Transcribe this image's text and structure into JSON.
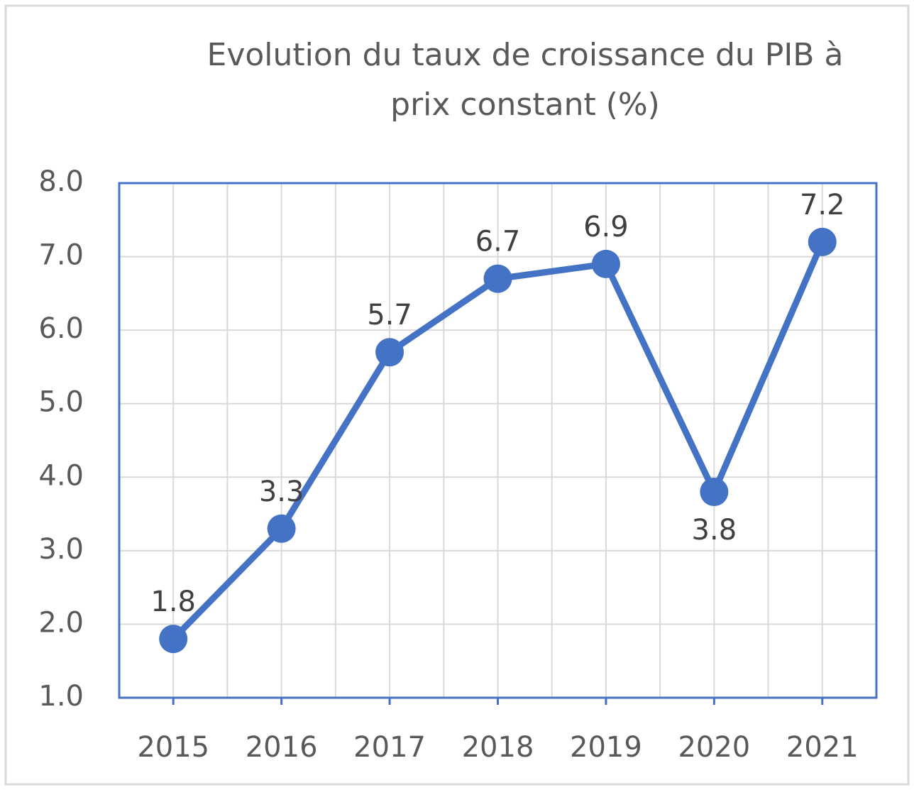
{
  "chart_data": {
    "type": "line",
    "title": [
      "Evolution du taux de croissance du PIB  à",
      "prix constant (%)"
    ],
    "categories": [
      "2015",
      "2016",
      "2017",
      "2018",
      "2019",
      "2020",
      "2021"
    ],
    "series": [
      {
        "color": "#4472c4",
        "values": [
          1.8,
          3.3,
          5.7,
          6.7,
          6.9,
          3.8,
          7.2
        ]
      }
    ],
    "value_label_position": [
      "above",
      "above",
      "above",
      "above",
      "above",
      "below",
      "above"
    ],
    "ylim": [
      1,
      8
    ],
    "yticks": [
      {
        "value": 1,
        "label": "1.0"
      },
      {
        "value": 2,
        "label": "2.0"
      },
      {
        "value": 3,
        "label": "3.0"
      },
      {
        "value": 4,
        "label": "4.0"
      },
      {
        "value": 5,
        "label": "5.0"
      },
      {
        "value": 6,
        "label": "6.0"
      },
      {
        "value": 7,
        "label": "7.0"
      },
      {
        "value": 8,
        "label": "8.0"
      }
    ],
    "grid": true
  }
}
